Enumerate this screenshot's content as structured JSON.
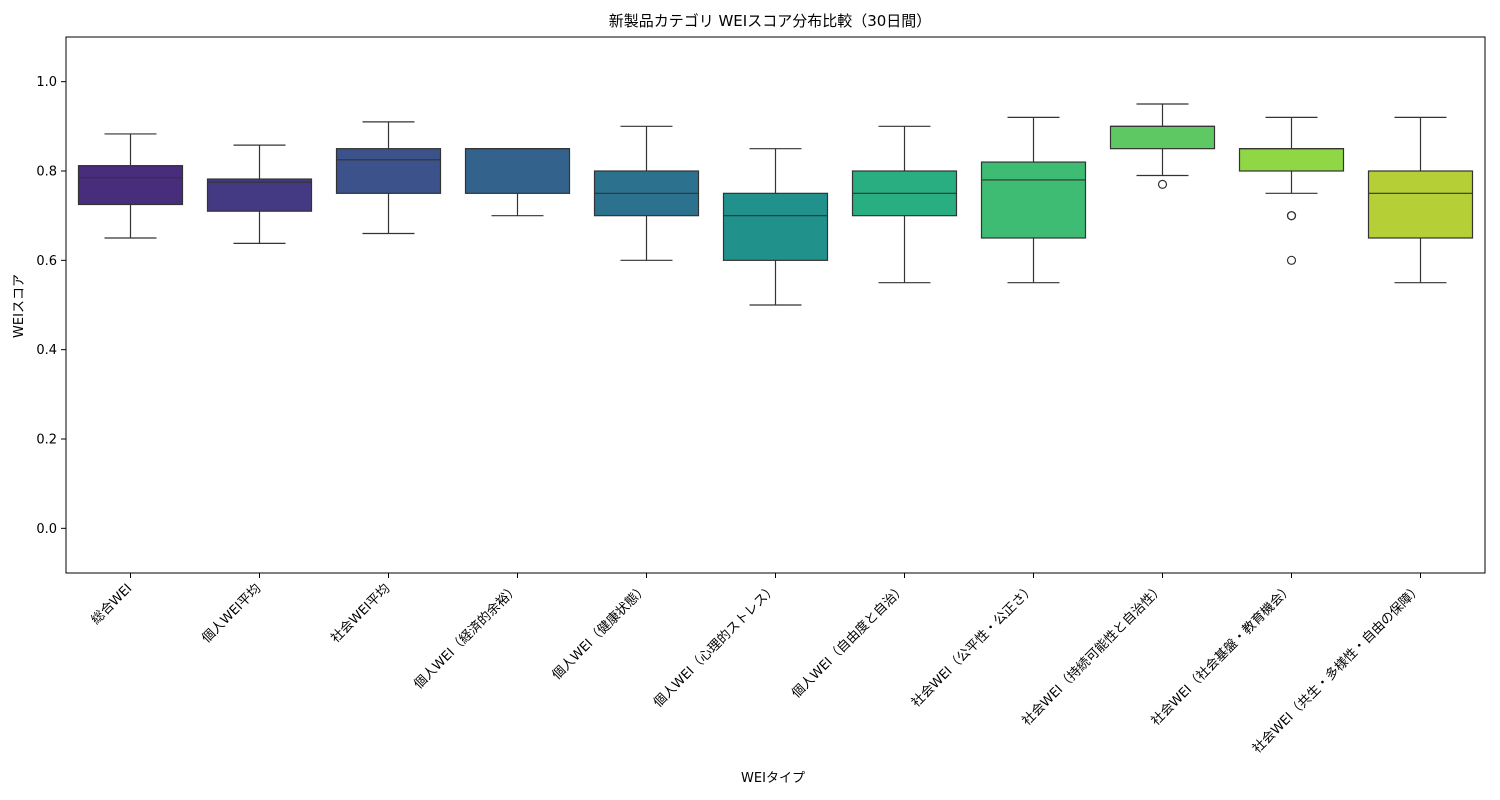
{
  "chart_data": {
    "type": "box",
    "title": "新製品カテゴリ WEIスコア分布比較（30日間）",
    "xlabel": "WEIタイプ",
    "ylabel": "WEIスコア",
    "ylim": [
      -0.1,
      1.1
    ],
    "yticks": [
      "0.0",
      "0.2",
      "0.4",
      "0.6",
      "0.8",
      "1.0"
    ],
    "grid": false,
    "legend": "none",
    "categories": [
      "総合WEI",
      "個人WEI平均",
      "社会WEI平均",
      "個人WEI（経済的余裕）",
      "個人WEI（健康状態）",
      "個人WEI（心理的ストレス）",
      "個人WEI（自由度と自治）",
      "社会WEI（公平性・公正さ）",
      "社会WEI（持続可能性と自治性）",
      "社会WEI（社会基盤・教育機会）",
      "社会WEI（共生・多様性・自由の保障）"
    ],
    "boxes": [
      {
        "whisker_low": 0.65,
        "q1": 0.725,
        "median": 0.785,
        "q3": 0.812,
        "whisker_high": 0.883,
        "outliers": [],
        "color": "#472d7b"
      },
      {
        "whisker_low": 0.638,
        "q1": 0.71,
        "median": 0.775,
        "q3": 0.782,
        "whisker_high": 0.858,
        "outliers": [],
        "color": "#443a83"
      },
      {
        "whisker_low": 0.66,
        "q1": 0.75,
        "median": 0.825,
        "q3": 0.85,
        "whisker_high": 0.91,
        "outliers": [],
        "color": "#3b528b"
      },
      {
        "whisker_low": 0.7,
        "q1": 0.75,
        "median": 0.85,
        "q3": 0.85,
        "whisker_high": 0.85,
        "outliers": [],
        "color": "#33638d"
      },
      {
        "whisker_low": 0.6,
        "q1": 0.7,
        "median": 0.75,
        "q3": 0.8,
        "whisker_high": 0.9,
        "outliers": [],
        "color": "#2c728e"
      },
      {
        "whisker_low": 0.5,
        "q1": 0.6,
        "median": 0.7,
        "q3": 0.75,
        "whisker_high": 0.85,
        "outliers": [],
        "color": "#21918c"
      },
      {
        "whisker_low": 0.55,
        "q1": 0.7,
        "median": 0.75,
        "q3": 0.8,
        "whisker_high": 0.9,
        "outliers": [],
        "color": "#28ae80"
      },
      {
        "whisker_low": 0.55,
        "q1": 0.65,
        "median": 0.78,
        "q3": 0.82,
        "whisker_high": 0.92,
        "outliers": [],
        "color": "#3fbc73"
      },
      {
        "whisker_low": 0.79,
        "q1": 0.85,
        "median": 0.9,
        "q3": 0.9,
        "whisker_high": 0.95,
        "outliers": [
          0.77
        ],
        "color": "#5ec962"
      },
      {
        "whisker_low": 0.75,
        "q1": 0.8,
        "median": 0.85,
        "q3": 0.85,
        "whisker_high": 0.92,
        "outliers": [
          0.7,
          0.7,
          0.6
        ],
        "color": "#8fd744"
      },
      {
        "whisker_low": 0.55,
        "q1": 0.65,
        "median": 0.75,
        "q3": 0.8,
        "whisker_high": 0.92,
        "outliers": [],
        "color": "#b5cf36"
      }
    ]
  }
}
